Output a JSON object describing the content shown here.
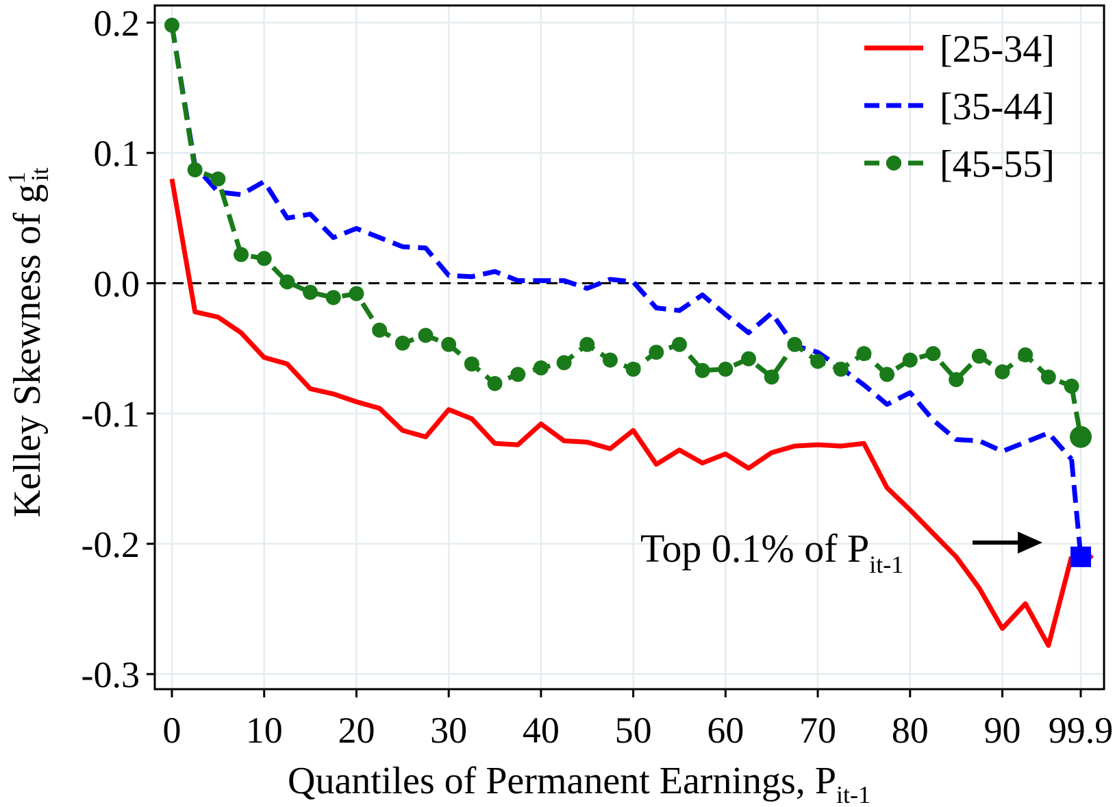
{
  "chart_data": {
    "type": "line",
    "title": "",
    "xlabel": "Quantiles of Permanent Earnings, ",
    "xlabel_sub_base": "P",
    "xlabel_sub": "it-1",
    "ylabel": "Kelley Skewness of g",
    "ylabel_sup": "1",
    "ylabel_sub": "it",
    "ylim": [
      -0.3,
      0.2
    ],
    "yticks": [
      "0.2",
      "0.1",
      "0.0",
      "-0.1",
      "-0.2",
      "-0.3"
    ],
    "ytick_values": [
      0.2,
      0.1,
      0.0,
      -0.1,
      -0.2,
      -0.3
    ],
    "xticks": [
      "0",
      "10",
      "20",
      "30",
      "40",
      "50",
      "60",
      "70",
      "80",
      "90",
      "99.9"
    ],
    "xtick_values": [
      0,
      10,
      20,
      30,
      40,
      50,
      60,
      70,
      80,
      90,
      98.5
    ],
    "xlim": [
      0,
      98.5
    ],
    "grid": true,
    "zero_line": true,
    "legend_position": "top-right",
    "x": [
      0,
      2.5,
      5,
      7.5,
      10,
      12.5,
      15,
      17.5,
      20,
      22.5,
      25,
      27.5,
      30,
      32.5,
      35,
      37.5,
      40,
      42.5,
      45,
      47.5,
      50,
      52.5,
      55,
      57.5,
      60,
      62.5,
      65,
      67.5,
      70,
      72.5,
      75,
      77.5,
      80,
      82.5,
      85,
      87.5,
      90,
      92.5,
      95,
      97.5
    ],
    "series": [
      {
        "name": "[25-34]",
        "color": "#ff0000",
        "style": "solid",
        "values": [
          0.08,
          -0.022,
          -0.026,
          -0.038,
          -0.057,
          -0.062,
          -0.081,
          -0.085,
          -0.091,
          -0.096,
          -0.113,
          -0.118,
          -0.097,
          -0.104,
          -0.123,
          -0.124,
          -0.108,
          -0.121,
          -0.122,
          -0.127,
          -0.113,
          -0.139,
          -0.128,
          -0.138,
          -0.131,
          -0.142,
          -0.13,
          -0.125,
          -0.124,
          -0.125,
          -0.123,
          -0.157,
          -0.174,
          -0.192,
          -0.21,
          -0.234,
          -0.265,
          -0.246,
          -0.278,
          -0.21
        ]
      },
      {
        "name": "[35-44]",
        "color": "#0000ff",
        "style": "dashed",
        "values": [
          0.198,
          0.09,
          0.07,
          0.068,
          0.078,
          0.05,
          0.053,
          0.035,
          0.042,
          0.035,
          0.028,
          0.027,
          0.006,
          0.005,
          0.009,
          0.002,
          0.002,
          0.002,
          -0.004,
          0.003,
          0.001,
          -0.019,
          -0.021,
          -0.009,
          -0.024,
          -0.038,
          -0.023,
          -0.048,
          -0.053,
          -0.065,
          -0.078,
          -0.093,
          -0.084,
          -0.105,
          -0.12,
          -0.121,
          -0.129,
          -0.122,
          -0.115,
          -0.135
        ]
      },
      {
        "name": "[45-55]",
        "color": "#1a7a1a",
        "style": "dashed-markers",
        "values": [
          0.198,
          0.087,
          0.08,
          0.022,
          0.019,
          0.001,
          -0.007,
          -0.011,
          -0.008,
          -0.036,
          -0.046,
          -0.04,
          -0.047,
          -0.062,
          -0.077,
          -0.07,
          -0.065,
          -0.061,
          -0.047,
          -0.059,
          -0.066,
          -0.053,
          -0.047,
          -0.067,
          -0.066,
          -0.058,
          -0.072,
          -0.047,
          -0.06,
          -0.066,
          -0.054,
          -0.07,
          -0.059,
          -0.054,
          -0.074,
          -0.056,
          -0.068,
          -0.055,
          -0.072,
          -0.079
        ]
      }
    ],
    "top_points": {
      "x": 98.5,
      "values": [
        {
          "series": "[25-34]",
          "value": -0.21,
          "marker": "diamond",
          "color": "#ff0000"
        },
        {
          "series": "[35-44]",
          "value": -0.21,
          "marker": "square",
          "color": "#0000ff"
        },
        {
          "series": "[45-55]",
          "value": -0.118,
          "marker": "circle",
          "color": "#1a7a1a"
        }
      ]
    },
    "annotation": {
      "text": "Top 0.1% of ",
      "base": "P",
      "sub": "it-1"
    }
  }
}
